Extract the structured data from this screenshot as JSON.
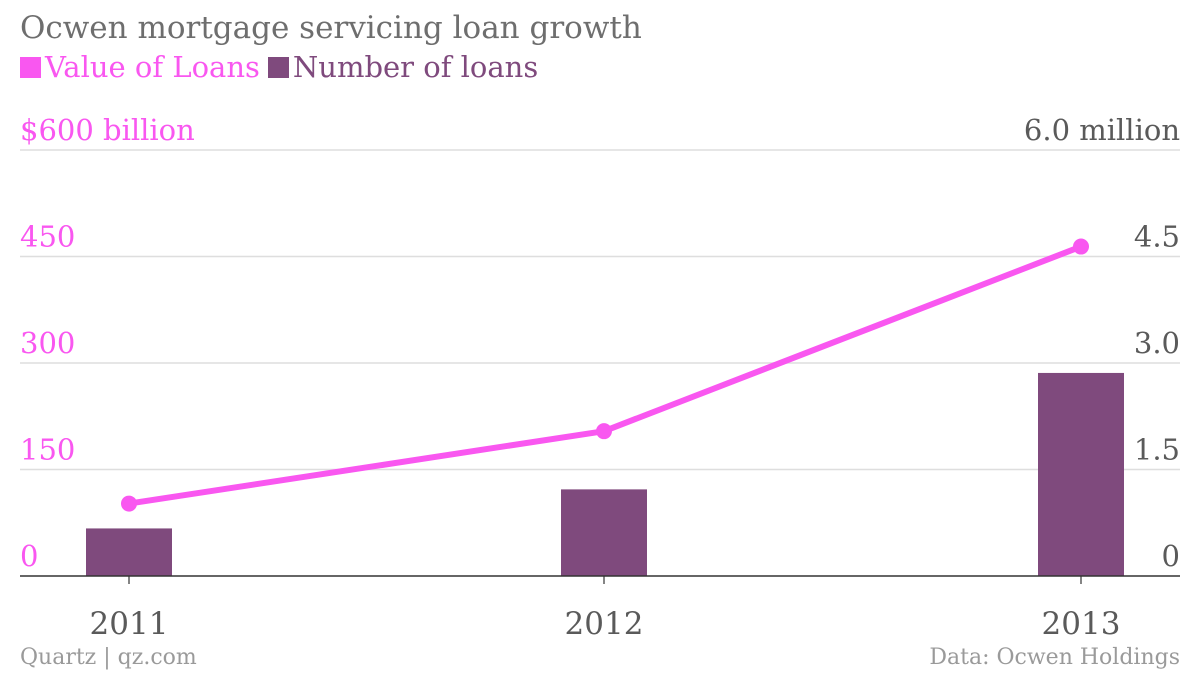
{
  "chart_data": {
    "type": "bar+line",
    "title": "Ocwen mortgage servicing loan growth",
    "categories": [
      "2011",
      "2012",
      "2013"
    ],
    "series": [
      {
        "name": "Value of Loans",
        "type": "line",
        "axis": "left",
        "color": "#f957f0",
        "values": [
          102,
          204,
          464
        ]
      },
      {
        "name": "Number of loans",
        "type": "bar",
        "axis": "right",
        "color": "#7f4a7d",
        "values": [
          0.67,
          1.22,
          2.86
        ]
      }
    ],
    "left_axis": {
      "ticks": [
        0,
        150,
        300,
        450,
        600
      ],
      "tick_labels": [
        "0",
        "150",
        "300",
        "450",
        "$600 billion"
      ],
      "ylim": [
        0,
        600
      ],
      "color": "#f957f0"
    },
    "right_axis": {
      "ticks": [
        0,
        1.5,
        3.0,
        4.5,
        6.0
      ],
      "tick_labels": [
        "0",
        "1.5",
        "3.0",
        "4.5",
        "6.0 million"
      ],
      "ylim": [
        0,
        6
      ],
      "color": "#5a5a5a"
    },
    "grid": true,
    "legend_position": "top-left"
  },
  "footer": {
    "source_left": "Quartz | qz.com",
    "source_right": "Data: Ocwen Holdings"
  }
}
